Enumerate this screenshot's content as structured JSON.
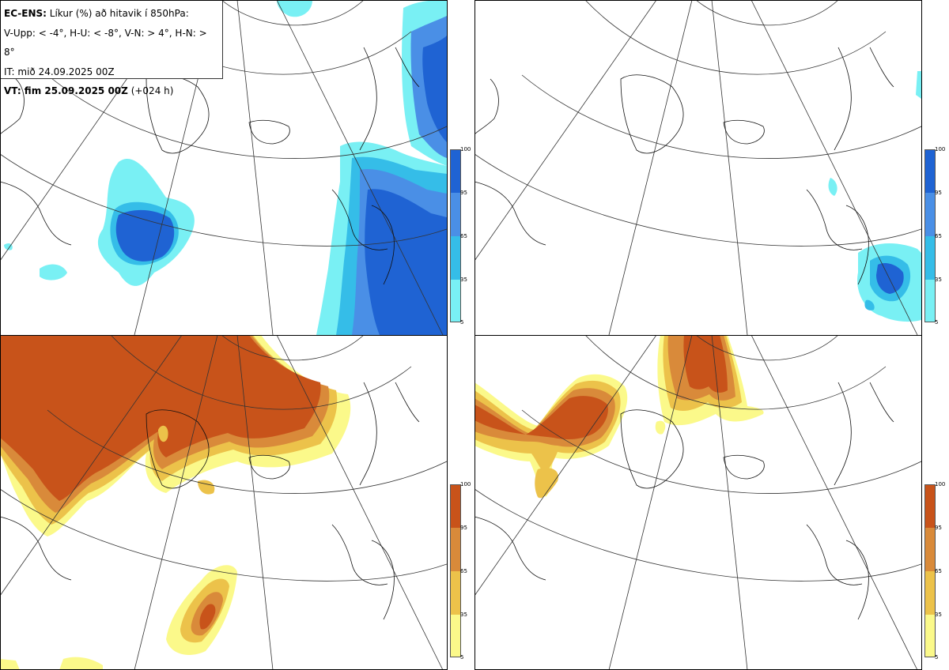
{
  "header": {
    "line1_bold": "EC-ENS:",
    "line1_rest": " Líkur (%) að hitavik í 850hPa:",
    "line2": "V-Upp: < -4°, H-U: < -8°, V-N: > 4°, H-N: > 8°",
    "line3": "IT: mið 24.09.2025 00Z",
    "line4_bold": "VT: fim 25.09.2025 00Z",
    "line4_rest": " (+024 h)"
  },
  "colorbar_cold": {
    "labels": [
      "100",
      "95",
      "65",
      "35",
      "5"
    ],
    "colors": [
      "#1f63d3",
      "#4a8fe6",
      "#35bde8",
      "#79f0f4"
    ]
  },
  "colorbar_warm": {
    "labels": [
      "100",
      "95",
      "65",
      "35",
      "5"
    ],
    "colors": [
      "#c8531a",
      "#d98a3a",
      "#ecc24a",
      "#fbf98a"
    ]
  },
  "panels": [
    {
      "id": "top-left",
      "variable": "V-Upp"
    },
    {
      "id": "top-right",
      "variable": "H-U"
    },
    {
      "id": "bottom-left",
      "variable": "V-N"
    },
    {
      "id": "bottom-right",
      "variable": "H-N"
    }
  ]
}
